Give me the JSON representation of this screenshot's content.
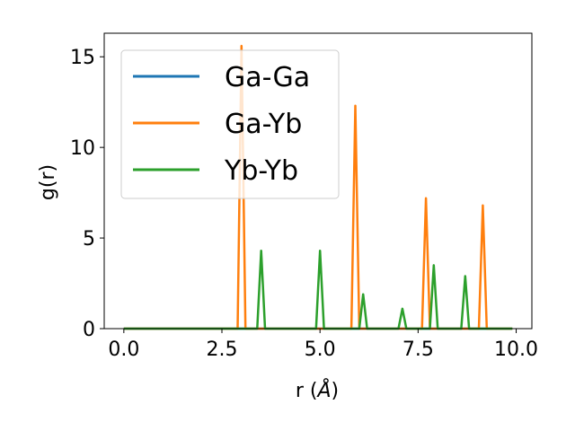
{
  "chart_data": {
    "type": "line",
    "xlabel": "r",
    "xlabel_unit": "Å",
    "ylabel": "g(r)",
    "xlim": [
      -0.5,
      10.4
    ],
    "ylim": [
      0,
      16.3
    ],
    "xticks": [
      0.0,
      2.5,
      5.0,
      7.5,
      10.0
    ],
    "xtick_labels": [
      "0.0",
      "2.5",
      "5.0",
      "7.5",
      "10.0"
    ],
    "yticks": [
      0,
      5,
      10,
      15
    ],
    "ytick_labels": [
      "0",
      "5",
      "10",
      "15"
    ],
    "grid": false,
    "legend_position": "top-left",
    "series": [
      {
        "name": "Ga-Ga",
        "color": "#1f77b4",
        "x": [
          0.0,
          9.9
        ],
        "y": [
          0,
          0
        ]
      },
      {
        "name": "Ga-Yb",
        "color": "#ff7f0e",
        "x": [
          0.0,
          2.9,
          3.0,
          3.1,
          5.8,
          5.9,
          6.0,
          7.6,
          7.7,
          7.8,
          9.05,
          9.15,
          9.25,
          9.9
        ],
        "y": [
          0,
          0,
          15.6,
          0,
          0,
          12.3,
          0,
          0,
          7.2,
          0,
          0,
          6.8,
          0,
          0
        ]
      },
      {
        "name": "Yb-Yb",
        "color": "#2ca02c",
        "x": [
          0.0,
          3.4,
          3.5,
          3.6,
          4.9,
          5.0,
          5.1,
          6.0,
          6.1,
          6.2,
          7.0,
          7.1,
          7.2,
          7.8,
          7.9,
          8.0,
          8.6,
          8.7,
          8.8,
          9.9
        ],
        "y": [
          0,
          0,
          4.3,
          0,
          0,
          4.3,
          0,
          0,
          1.9,
          0,
          0,
          1.1,
          0,
          0,
          3.5,
          0,
          0,
          2.9,
          0,
          0
        ]
      }
    ]
  }
}
